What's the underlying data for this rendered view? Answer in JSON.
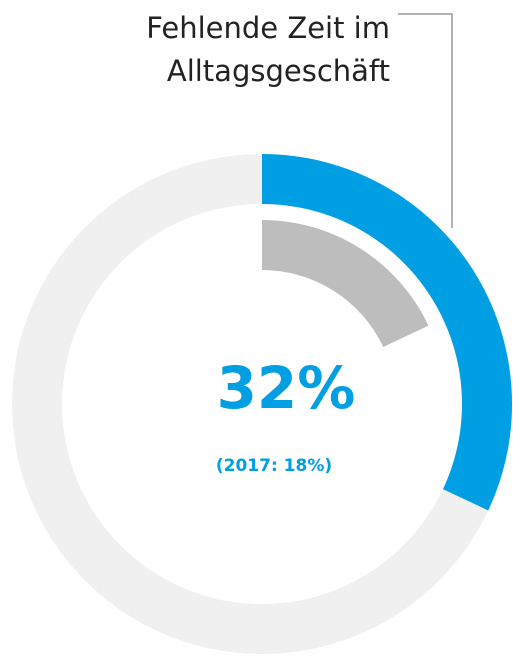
{
  "chart_data": {
    "type": "donut",
    "label": "Fehlende Zeit im Alltagsgeschäft",
    "rings": [
      {
        "values": [
          32
        ],
        "value_labels": [
          "32%"
        ],
        "color": "#009fe3"
      },
      {
        "values": [
          18
        ],
        "value_labels": [
          "(2017: 18%)"
        ],
        "color": "#bdbdbd"
      }
    ],
    "track_color": "#f0f0f0"
  }
}
